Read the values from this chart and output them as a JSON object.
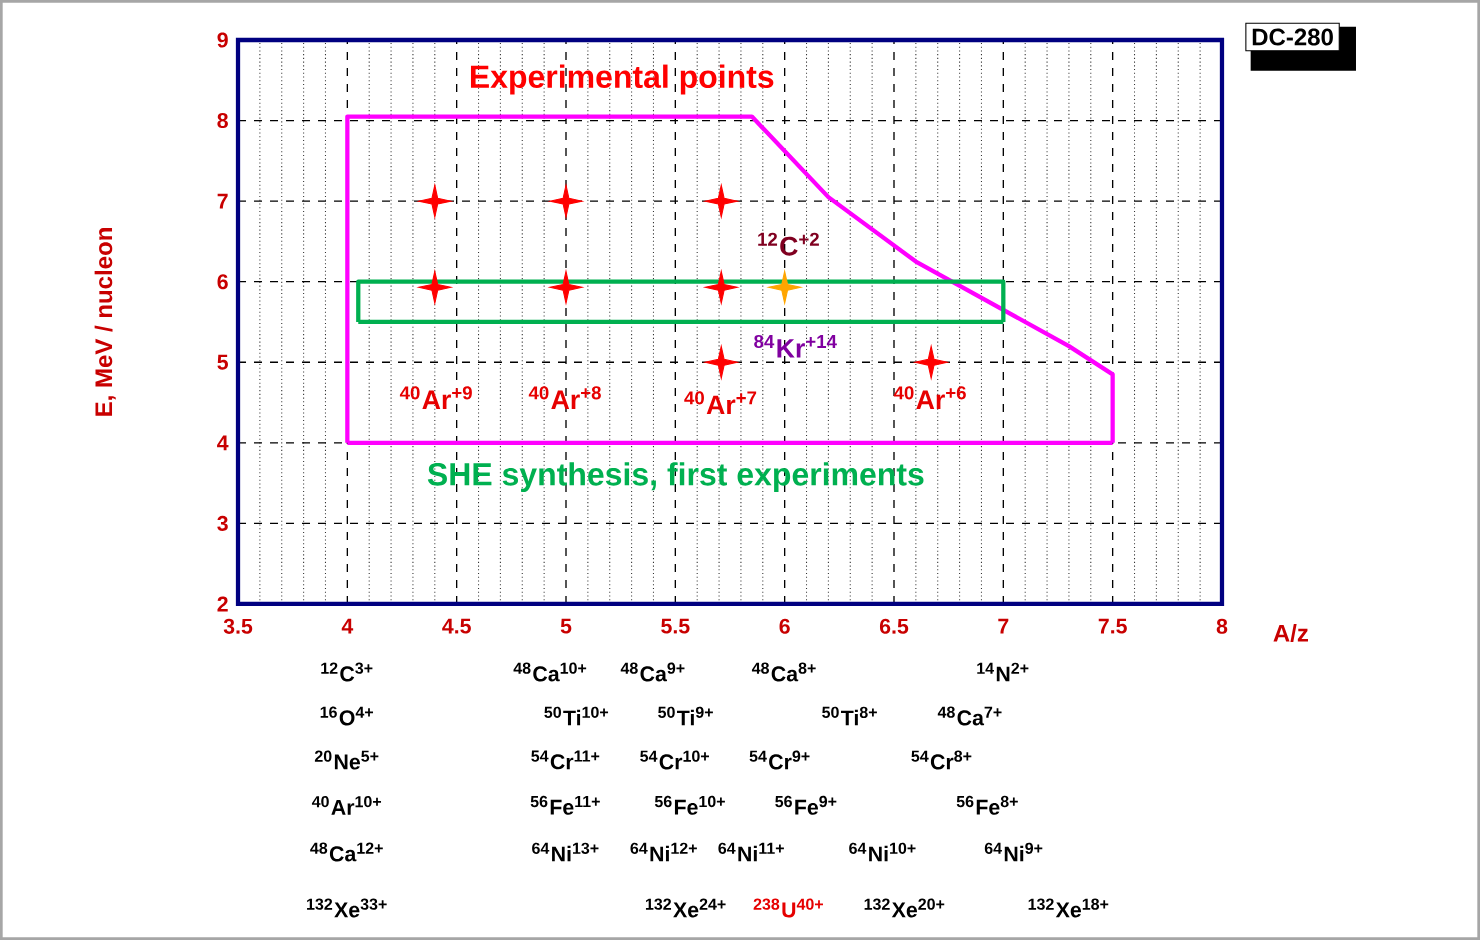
{
  "chart_data": {
    "type": "scatter",
    "title": "DC-280",
    "xlabel": "A/z",
    "ylabel": "E, MeV / nucleon",
    "xlim": [
      3.5,
      8
    ],
    "ylim": [
      2,
      9
    ],
    "xticks": [
      3.5,
      {
        "value": 3.6,
        "label": null
      },
      {
        "value": 3.7,
        "label": null
      },
      {
        "value": 3.8,
        "label": null
      },
      {
        "value": 3.9,
        "label": null
      },
      4,
      {
        "value": 4.1,
        "label": null
      },
      {
        "value": 4.2,
        "label": null
      },
      {
        "value": 4.3,
        "label": null
      },
      {
        "value": 4.4,
        "label": null
      },
      4.5,
      {
        "value": 4.6,
        "label": null
      },
      {
        "value": 4.7,
        "label": null
      },
      {
        "value": 4.8,
        "label": null
      },
      {
        "value": 4.9,
        "label": null
      },
      5,
      {
        "value": 5.1,
        "label": null
      },
      {
        "value": 5.2,
        "label": null
      },
      {
        "value": 5.3,
        "label": null
      },
      {
        "value": 5.4,
        "label": null
      },
      5.5,
      {
        "value": 5.6,
        "label": null
      },
      {
        "value": 5.7,
        "label": null
      },
      {
        "value": 5.8,
        "label": null
      },
      {
        "value": 5.9,
        "label": null
      },
      6,
      {
        "value": 6.1,
        "label": null
      },
      {
        "value": 6.2,
        "label": null
      },
      {
        "value": 6.3,
        "label": null
      },
      {
        "value": 6.4,
        "label": null
      },
      6.5,
      {
        "value": 6.6,
        "label": null
      },
      {
        "value": 6.7,
        "label": null
      },
      {
        "value": 6.8,
        "label": null
      },
      {
        "value": 6.9,
        "label": null
      },
      7,
      {
        "value": 7.1,
        "label": null
      },
      {
        "value": 7.2,
        "label": null
      },
      {
        "value": 7.3,
        "label": null
      },
      {
        "value": 7.4,
        "label": null
      },
      7.5,
      {
        "value": 7.6,
        "label": null
      },
      {
        "value": 7.7,
        "label": null
      },
      {
        "value": 7.8,
        "label": null
      },
      {
        "value": 7.9,
        "label": null
      },
      8
    ],
    "yticks": [
      2,
      3,
      4,
      5,
      6,
      7,
      8,
      9
    ],
    "grid": true,
    "series": [
      {
        "name": "Experimental points",
        "marker": "star",
        "color": "#ff0000",
        "x": [
          4.4,
          4.4,
          5.0,
          5.0,
          5.71,
          5.71,
          5.71,
          6.67
        ],
        "values": [
          7.0,
          5.93,
          7.0,
          5.93,
          7.0,
          5.93,
          5.0,
          5.0
        ]
      },
      {
        "marker": "star",
        "color": "#ffa500",
        "x": [
          6.0
        ],
        "values": [
          5.93
        ]
      },
      {
        "type": "line",
        "color": "#ff00ff",
        "x": [
          4,
          4,
          5.85,
          6.2,
          6.6,
          7.3,
          7.5,
          7.5
        ],
        "values": [
          4,
          8.05,
          8.05,
          7.05,
          6.25,
          5.2,
          4.85,
          4
        ]
      },
      {
        "type": "line",
        "color": "#ff00ff",
        "x": [
          4,
          7.5
        ],
        "values": [
          4,
          4
        ]
      },
      {
        "name": "SHE synthesis, first experiments",
        "type": "line",
        "color": "#00b050",
        "x": [
          4.05,
          4.05,
          7.0,
          7.0
        ],
        "values": [
          5.5,
          6.0,
          6.0,
          5.5
        ]
      },
      {
        "type": "line",
        "color": "#00b050",
        "x": [
          4.05,
          7.0
        ],
        "values": [
          5.5,
          5.5
        ]
      }
    ],
    "annotations": [
      "$^{12}$C$^{+2}$",
      "$^{84}$Kr$^{+14}$",
      "$^{40}$Ar$^{+9}$",
      "$^{40}$Ar$^{+8}$",
      "$^{40}$Ar$^{+7}$",
      "$^{40}$Ar$^{+6}$",
      "$^{12}$C$^{3+}$",
      "$^{48}$Ca$^{10+}$",
      "$^{48}$Ca$^{9+}$",
      "$^{48}$Ca$^{8+}$",
      "$^{14}$N$^{2+}$",
      "$^{16}$O$^{4+}$",
      "$^{50}$Ti$^{10+}$",
      "$^{50}$Ti$^{9+}$",
      "$^{50}$Ti$^{8+}$",
      "$^{48}$Ca$^{7+}$",
      "$^{20}$Ne$^{5+}$",
      "$^{54}$Cr$^{11+}$",
      "$^{54}$Cr$^{10+}$",
      "$^{54}$Cr$^{9+}$",
      "$^{54}$Cr$^{8+}$",
      "$^{40}$Ar$^{10+}$",
      "$^{56}$Fe$^{11+}$",
      "$^{56}$Fe$^{10+}$",
      "$^{56}$Fe$^{9+}$",
      "$^{56}$Fe$^{8+}$",
      "$^{48}$Ca$^{12+}$",
      "$^{64}$Ni$^{13+}$",
      "$^{64}$Ni$^{12+}$",
      "$^{64}$Ni$^{11+}$",
      "$^{64}$Ni$^{10+}$",
      "$^{64}$Ni$^{9+}$",
      "$^{132}$Xe$^{33+}$",
      "$^{132}$Xe$^{24+}$",
      "$^{238}$U$^{40+}$",
      "$^{132}$Xe$^{20+}$",
      "$^{132}$Xe$^{18+}$"
    ]
  }
}
